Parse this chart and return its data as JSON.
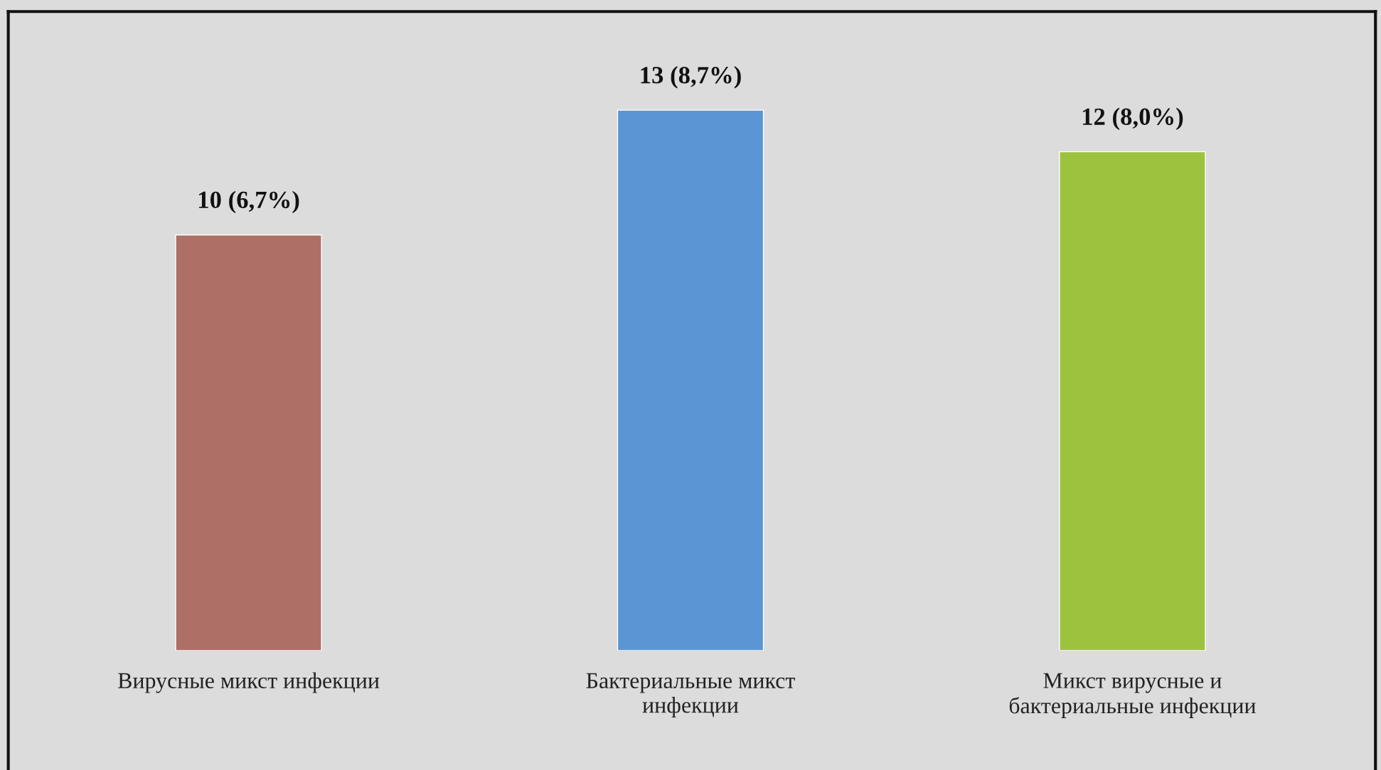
{
  "chart_data": {
    "type": "bar",
    "categories": [
      "Вирусные микст инфекции",
      "Бактериальные микст\nинфекции",
      "Микст вирусные и\nбактериальные инфекции"
    ],
    "values": [
      10,
      13,
      12
    ],
    "colors": [
      "#ad6f66",
      "#5b95d2",
      "#9dc23e"
    ],
    "value_labels": [
      "10 (6,7%)",
      "13 (8,7%)",
      "12 (8,0%)"
    ],
    "tick_labels": "x"
  }
}
